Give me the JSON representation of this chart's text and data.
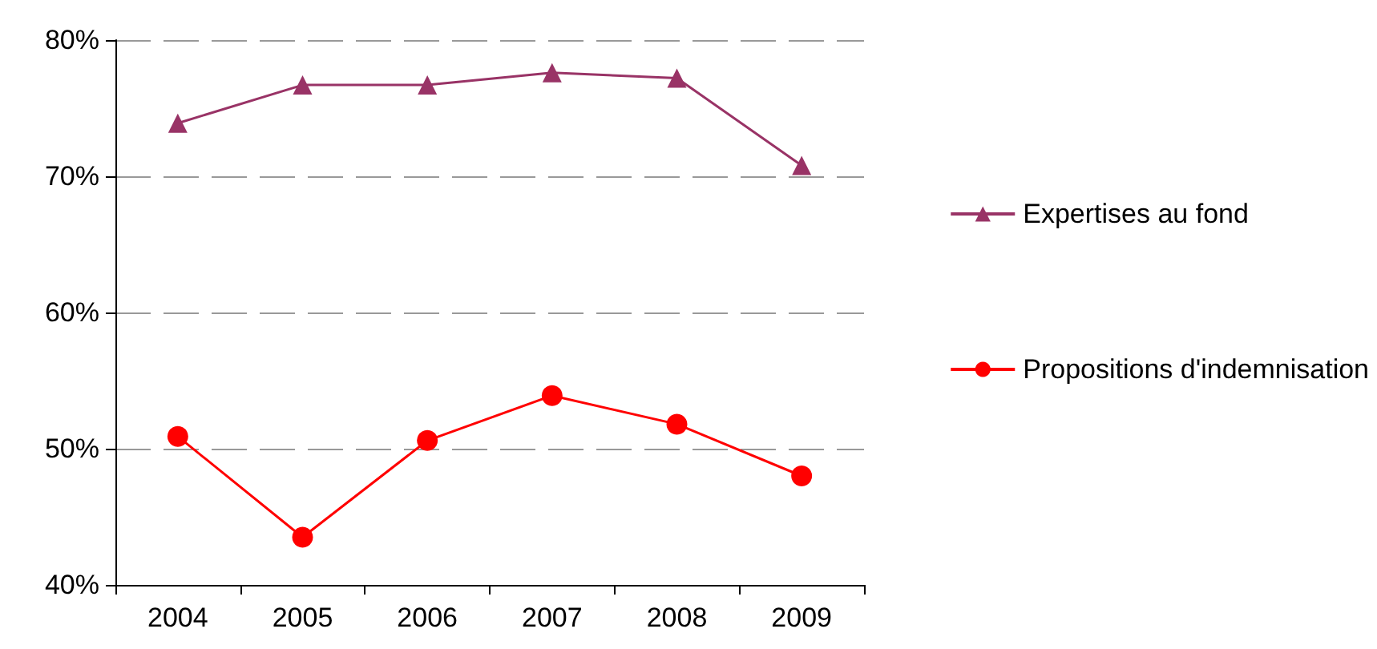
{
  "chart_data": {
    "type": "line",
    "categories": [
      "2004",
      "2005",
      "2006",
      "2007",
      "2008",
      "2009"
    ],
    "series": [
      {
        "name": "Expertises au fond",
        "color": "#993366",
        "marker": "triangle",
        "values": [
          73.9,
          76.7,
          76.7,
          77.6,
          77.2,
          70.8
        ]
      },
      {
        "name": "Propositions d'indemnisation",
        "color": "#ff0000",
        "marker": "circle",
        "values": [
          50.9,
          43.5,
          50.6,
          53.9,
          51.8,
          48.0
        ]
      }
    ],
    "ylim": [
      40,
      80
    ],
    "yticks": [
      {
        "value": 40,
        "label": "40%"
      },
      {
        "value": 50,
        "label": "50%"
      },
      {
        "value": 60,
        "label": "60%"
      },
      {
        "value": 70,
        "label": "70%"
      },
      {
        "value": 80,
        "label": "80%"
      }
    ],
    "grid": "y",
    "legend": "right"
  }
}
